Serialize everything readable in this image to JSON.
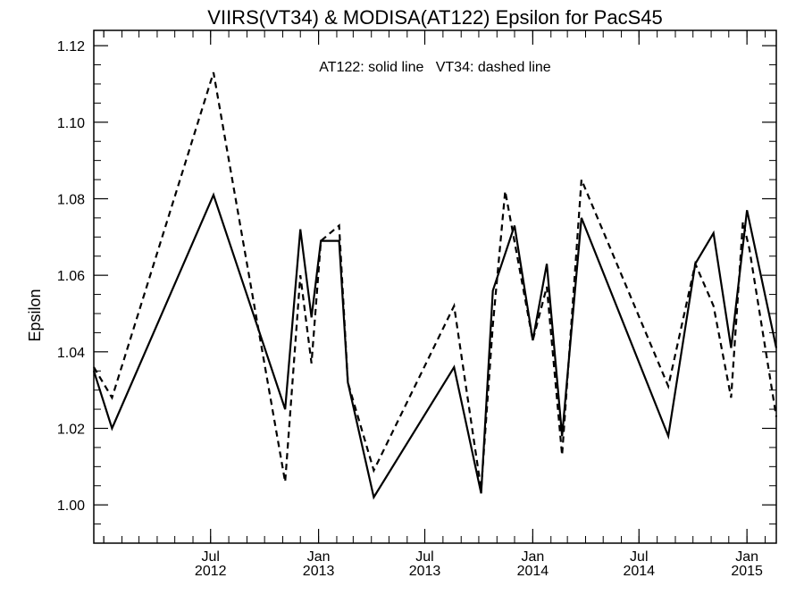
{
  "chart_data": {
    "type": "line",
    "title": "VIIRS(VT34) & MODISA(AT122)  Epsilon for PacS45",
    "annotation": "AT122: solid line   VT34: dashed line",
    "xlabel": "",
    "ylabel": "Epsilon",
    "x_axis": {
      "type": "date",
      "range": [
        "2011-12-15",
        "2015-02-20"
      ],
      "ticks": [
        {
          "date": "2012-07-01",
          "line1": "Jul",
          "line2": "2012"
        },
        {
          "date": "2013-01-01",
          "line1": "Jan",
          "line2": "2013"
        },
        {
          "date": "2013-07-01",
          "line1": "Jul",
          "line2": "2013"
        },
        {
          "date": "2014-01-01",
          "line1": "Jan",
          "line2": "2014"
        },
        {
          "date": "2014-07-01",
          "line1": "Jul",
          "line2": "2014"
        },
        {
          "date": "2015-01-01",
          "line1": "Jan",
          "line2": "2015"
        }
      ]
    },
    "y_axis": {
      "range": [
        0.99,
        1.124
      ],
      "ticks": [
        "1.00",
        "1.02",
        "1.04",
        "1.06",
        "1.08",
        "1.10",
        "1.12"
      ]
    },
    "grid": false,
    "series": [
      {
        "name": "AT122",
        "style": "solid",
        "color": "#000000",
        "points": [
          [
            "2011-12-15",
            1.035
          ],
          [
            "2012-01-15",
            1.02
          ],
          [
            "2012-07-06",
            1.081
          ],
          [
            "2012-11-05",
            1.025
          ],
          [
            "2012-12-01",
            1.072
          ],
          [
            "2012-12-20",
            1.049
          ],
          [
            "2013-01-05",
            1.069
          ],
          [
            "2013-02-05",
            1.069
          ],
          [
            "2013-02-20",
            1.032
          ],
          [
            "2013-04-05",
            1.002
          ],
          [
            "2013-08-20",
            1.036
          ],
          [
            "2013-10-05",
            1.003
          ],
          [
            "2013-10-25",
            1.056
          ],
          [
            "2013-12-01",
            1.073
          ],
          [
            "2014-01-01",
            1.043
          ],
          [
            "2014-01-25",
            1.063
          ],
          [
            "2014-02-20",
            1.018
          ],
          [
            "2014-03-25",
            1.075
          ],
          [
            "2014-08-20",
            1.018
          ],
          [
            "2014-10-05",
            1.063
          ],
          [
            "2014-11-05",
            1.071
          ],
          [
            "2014-12-05",
            1.041
          ],
          [
            "2015-01-01",
            1.077
          ],
          [
            "2015-02-20",
            1.041
          ]
        ]
      },
      {
        "name": "VT34",
        "style": "dashed",
        "color": "#000000",
        "points": [
          [
            "2011-12-15",
            1.036
          ],
          [
            "2012-01-15",
            1.028
          ],
          [
            "2012-07-06",
            1.113
          ],
          [
            "2012-11-05",
            1.006
          ],
          [
            "2012-12-01",
            1.06
          ],
          [
            "2012-12-20",
            1.037
          ],
          [
            "2013-01-05",
            1.069
          ],
          [
            "2013-02-05",
            1.073
          ],
          [
            "2013-02-20",
            1.032
          ],
          [
            "2013-04-05",
            1.009
          ],
          [
            "2013-08-20",
            1.052
          ],
          [
            "2013-10-05",
            1.004
          ],
          [
            "2013-10-25",
            1.047
          ],
          [
            "2013-11-15",
            1.082
          ],
          [
            "2014-01-01",
            1.043
          ],
          [
            "2014-01-25",
            1.057
          ],
          [
            "2014-02-20",
            1.013
          ],
          [
            "2014-03-25",
            1.085
          ],
          [
            "2014-08-20",
            1.031
          ],
          [
            "2014-10-05",
            1.063
          ],
          [
            "2014-11-05",
            1.052
          ],
          [
            "2014-12-05",
            1.028
          ],
          [
            "2014-12-25",
            1.074
          ],
          [
            "2015-01-05",
            1.067
          ],
          [
            "2015-02-20",
            1.023
          ]
        ]
      }
    ]
  }
}
